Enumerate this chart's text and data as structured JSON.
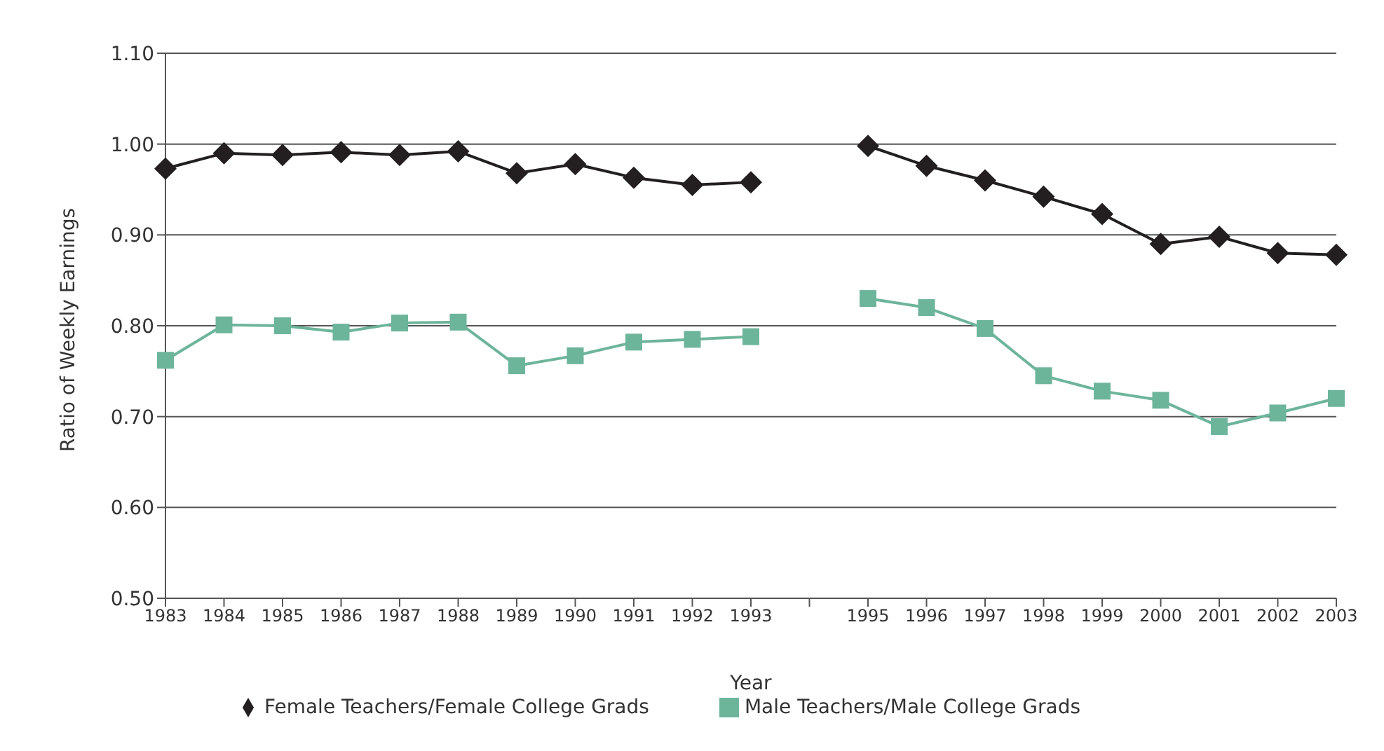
{
  "chart_data": {
    "type": "line",
    "xlabel": "Year",
    "ylabel": "Ratio of Weekly Earnings",
    "categories": [
      "1983",
      "1984",
      "1985",
      "1986",
      "1987",
      "1988",
      "1989",
      "1990",
      "1991",
      "1992",
      "1993",
      null,
      "1995",
      "1996",
      "1997",
      "1998",
      "1999",
      "2000",
      "2001",
      "2002",
      "2003"
    ],
    "series": [
      {
        "name": "Female Teachers/Female College Grads",
        "color": "#231f20",
        "marker": "diamond",
        "values": [
          0.973,
          0.99,
          0.988,
          0.991,
          0.988,
          0.992,
          0.968,
          0.978,
          0.963,
          0.955,
          0.958,
          null,
          0.998,
          0.976,
          0.96,
          0.942,
          0.923,
          0.89,
          0.898,
          0.88,
          0.878
        ]
      },
      {
        "name": "Male Teachers/Male College Grads",
        "color": "#6db59a",
        "marker": "square",
        "values": [
          0.762,
          0.801,
          0.8,
          0.793,
          0.803,
          0.804,
          0.756,
          0.767,
          0.782,
          0.785,
          0.788,
          null,
          0.83,
          0.82,
          0.797,
          0.745,
          0.728,
          0.718,
          0.689,
          0.704,
          0.72
        ]
      }
    ],
    "ylim": [
      0.5,
      1.1
    ],
    "yticks": [
      {
        "value": 0.5,
        "label": "0.50"
      },
      {
        "value": 0.6,
        "label": "0.60"
      },
      {
        "value": 0.7,
        "label": "0.70"
      },
      {
        "value": 0.8,
        "label": "0.80"
      },
      {
        "value": 0.9,
        "label": "0.90"
      },
      {
        "value": 1.0,
        "label": "1.00"
      },
      {
        "value": 1.1,
        "label": "1.10"
      }
    ],
    "grid": "y",
    "legend": "bottom"
  }
}
